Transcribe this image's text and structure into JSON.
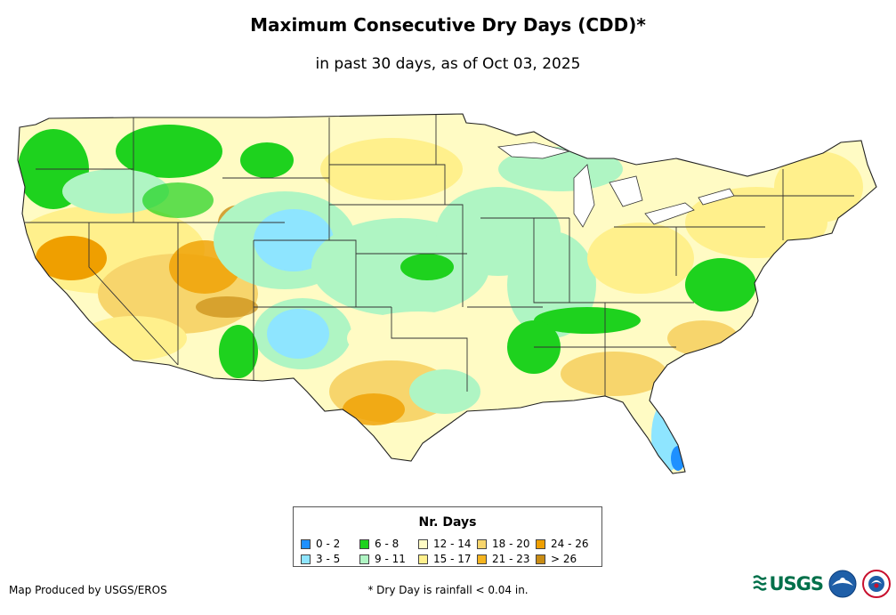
{
  "title": "Maximum Consecutive Dry Days (CDD)*",
  "subtitle": "in past 30 days, as of Oct 03, 2025",
  "legend": {
    "title": "Nr. Days",
    "items": [
      {
        "label": "0 - 2",
        "color": "#1e90ff"
      },
      {
        "label": "3 - 5",
        "color": "#8ee5ff"
      },
      {
        "label": "6 - 8",
        "color": "#1ed21e"
      },
      {
        "label": "9 - 11",
        "color": "#aff5c3"
      },
      {
        "label": "12 - 14",
        "color": "#fffbc4"
      },
      {
        "label": "15 - 17",
        "color": "#fff08c"
      },
      {
        "label": "18 - 20",
        "color": "#f7d56c"
      },
      {
        "label": "21 - 23",
        "color": "#f5b41e"
      },
      {
        "label": "24 - 26",
        "color": "#ef9f00"
      },
      {
        "label": "> 26",
        "color": "#c98c14"
      }
    ]
  },
  "credit": "Map Produced by USGS/EROS",
  "footnote": "* Dry Day is rainfall < 0.04 in.",
  "logos": {
    "usgs_text": "USGS",
    "usgs_icon": "usgs-wave-icon",
    "noaa_icon": "noaa-icon",
    "nws_icon": "nws-icon"
  }
}
